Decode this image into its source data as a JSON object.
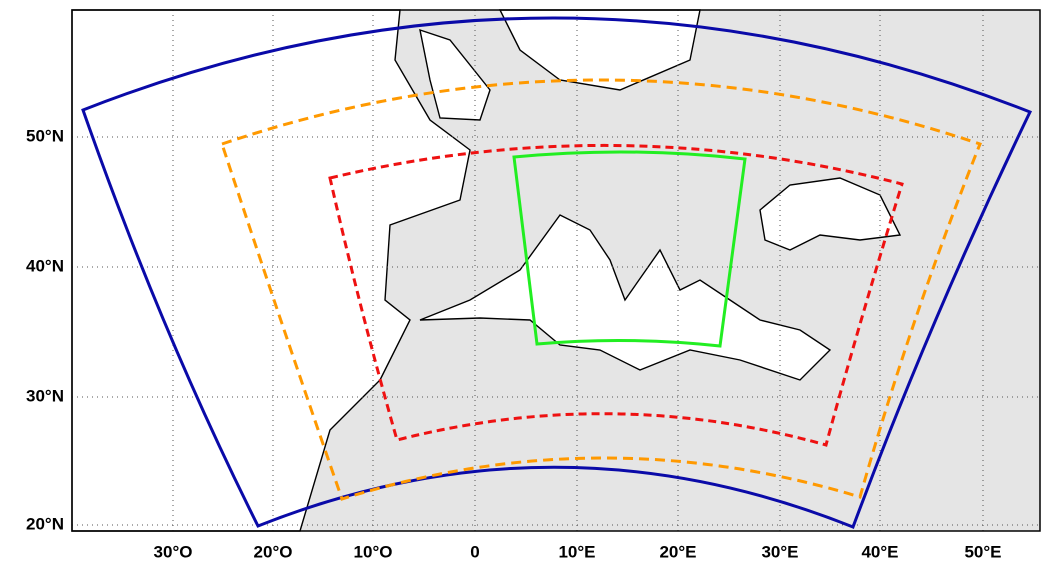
{
  "map": {
    "x_labels": [
      "30°O",
      "20°O",
      "10°O",
      "0",
      "10°E",
      "20°E",
      "30°E",
      "40°E",
      "50°E"
    ],
    "y_labels": [
      "50°N",
      "40°N",
      "30°N",
      "20°N"
    ]
  }
}
